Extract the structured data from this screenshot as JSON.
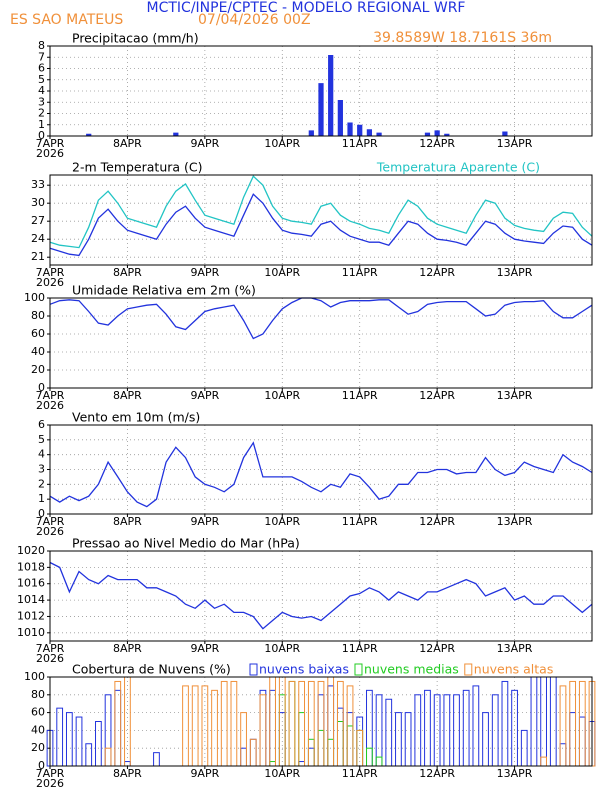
{
  "header": {
    "title": "MCTIC/INPE/CPTEC - MODELO REGIONAL WRF",
    "station": "ES SAO MATEUS",
    "date": "07/04/2026 00Z",
    "location": "39.8589W 18.7161S 36m"
  },
  "chart_data": [
    {
      "type": "bar",
      "title": "Precipitacao (mm/h)",
      "year_label": "2026",
      "grid": true,
      "x": [
        0,
        3,
        6,
        9,
        12,
        15,
        18,
        21,
        24,
        27,
        30,
        33,
        36,
        39,
        42,
        45,
        48,
        51,
        54,
        57,
        60,
        63,
        66,
        69,
        72,
        75,
        78,
        81,
        84,
        87,
        90,
        93,
        96,
        99,
        102,
        105,
        108,
        111,
        114,
        117,
        120,
        123,
        126,
        129,
        132,
        135,
        138,
        141,
        144,
        147,
        150,
        153,
        156,
        159,
        162,
        165,
        168
      ],
      "xlim": [
        0,
        168
      ],
      "xticks": [
        {
          "value": 0,
          "label": "7APR"
        },
        {
          "value": 24,
          "label": "8APR"
        },
        {
          "value": 48,
          "label": "9APR"
        },
        {
          "value": 72,
          "label": "10APR"
        },
        {
          "value": 96,
          "label": "11APR"
        },
        {
          "value": 120,
          "label": "12APR"
        },
        {
          "value": 144,
          "label": "13APR"
        }
      ],
      "ylim": [
        0,
        8
      ],
      "yticks": [
        0,
        1,
        2,
        3,
        4,
        5,
        6,
        7,
        8
      ],
      "series": [
        {
          "color": "#2233dd",
          "values": [
            0,
            0,
            0,
            0,
            0.2,
            0,
            0,
            0,
            0,
            0,
            0,
            0,
            0,
            0.3,
            0,
            0,
            0,
            0,
            0,
            0,
            0,
            0,
            0,
            0,
            0,
            0,
            0,
            0.5,
            4.7,
            7.2,
            3.2,
            1.2,
            1.0,
            0.6,
            0.3,
            0,
            0,
            0,
            0,
            0.3,
            0.5,
            0.2,
            0,
            0,
            0,
            0,
            0,
            0.4,
            0,
            0,
            0,
            0,
            0,
            0,
            0,
            0,
            0
          ]
        }
      ]
    },
    {
      "type": "line",
      "title": "2-m Temperatura (C)",
      "year_label": "2026",
      "grid": true,
      "x": [
        0,
        3,
        6,
        9,
        12,
        15,
        18,
        21,
        24,
        27,
        30,
        33,
        36,
        39,
        42,
        45,
        48,
        51,
        54,
        57,
        60,
        63,
        66,
        69,
        72,
        75,
        78,
        81,
        84,
        87,
        90,
        93,
        96,
        99,
        102,
        105,
        108,
        111,
        114,
        117,
        120,
        123,
        126,
        129,
        132,
        135,
        138,
        141,
        144,
        147,
        150,
        153,
        156,
        159,
        162,
        165,
        168
      ],
      "xlim": [
        0,
        168
      ],
      "xticks": [
        {
          "value": 0,
          "label": "7APR"
        },
        {
          "value": 24,
          "label": "8APR"
        },
        {
          "value": 48,
          "label": "9APR"
        },
        {
          "value": 72,
          "label": "10APR"
        },
        {
          "value": 96,
          "label": "11APR"
        },
        {
          "value": 120,
          "label": "12APR"
        },
        {
          "value": 144,
          "label": "13APR"
        }
      ],
      "ylim": [
        19.7,
        34.7
      ],
      "yticks": [
        21,
        24,
        27,
        30,
        33
      ],
      "series": [
        {
          "color": "#2233dd",
          "values": [
            22.5,
            22,
            21.5,
            21.3,
            24,
            27.5,
            29,
            27,
            25.5,
            25,
            24.5,
            24,
            26.5,
            28.5,
            29.5,
            27.5,
            26,
            25.5,
            25,
            24.5,
            28,
            31.5,
            30,
            27.5,
            25.5,
            25,
            24.8,
            24.5,
            26.5,
            27,
            25.5,
            24.5,
            24,
            23.5,
            23.5,
            23,
            25,
            27,
            26.5,
            25,
            24,
            23.8,
            23.5,
            23,
            25,
            27,
            26.5,
            25,
            24,
            23.7,
            23.5,
            23.3,
            25,
            26.2,
            26,
            24,
            23
          ]
        },
        {
          "name": "Temperatura Aparente (C)",
          "color": "#22c4c4",
          "values": [
            23.5,
            23,
            22.8,
            22.6,
            26,
            30.5,
            32,
            30,
            27.5,
            27,
            26.5,
            26,
            29.5,
            32,
            33.2,
            30.5,
            28,
            27.5,
            27,
            26.5,
            31,
            34.5,
            33,
            29.5,
            27.5,
            27,
            26.8,
            26.5,
            29.5,
            30,
            28,
            27,
            26.5,
            25.8,
            25.5,
            25,
            28,
            30.5,
            29.5,
            27.5,
            26.5,
            26,
            25.5,
            25,
            28,
            30.5,
            30,
            27.5,
            26.3,
            25.8,
            25.5,
            25.3,
            27.5,
            28.5,
            28.3,
            26,
            24.5
          ]
        }
      ]
    },
    {
      "type": "line",
      "title": "Umidade Relativa em 2m (%)",
      "year_label": "2026",
      "grid": true,
      "x": [
        0,
        3,
        6,
        9,
        12,
        15,
        18,
        21,
        24,
        27,
        30,
        33,
        36,
        39,
        42,
        45,
        48,
        51,
        54,
        57,
        60,
        63,
        66,
        69,
        72,
        75,
        78,
        81,
        84,
        87,
        90,
        93,
        96,
        99,
        102,
        105,
        108,
        111,
        114,
        117,
        120,
        123,
        126,
        129,
        132,
        135,
        138,
        141,
        144,
        147,
        150,
        153,
        156,
        159,
        162,
        165,
        168
      ],
      "xlim": [
        0,
        168
      ],
      "xticks": [
        {
          "value": 0,
          "label": "7APR"
        },
        {
          "value": 24,
          "label": "8APR"
        },
        {
          "value": 48,
          "label": "9APR"
        },
        {
          "value": 72,
          "label": "10APR"
        },
        {
          "value": 96,
          "label": "11APR"
        },
        {
          "value": 120,
          "label": "12APR"
        },
        {
          "value": 144,
          "label": "13APR"
        }
      ],
      "ylim": [
        0,
        100
      ],
      "yticks": [
        0,
        20,
        40,
        60,
        80,
        100
      ],
      "series": [
        {
          "color": "#2233dd",
          "values": [
            93,
            97,
            98,
            97,
            85,
            72,
            70,
            80,
            88,
            90,
            92,
            93,
            82,
            68,
            65,
            75,
            85,
            88,
            90,
            92,
            75,
            55,
            60,
            75,
            88,
            95,
            100,
            100,
            97,
            90,
            95,
            97,
            97,
            97,
            98,
            98,
            90,
            82,
            85,
            93,
            95,
            96,
            96,
            96,
            88,
            80,
            82,
            92,
            95,
            96,
            96,
            97,
            85,
            78,
            78,
            85,
            92
          ]
        }
      ]
    },
    {
      "type": "line",
      "title": "Vento em 10m (m/s)",
      "year_label": "2026",
      "grid": true,
      "x": [
        0,
        3,
        6,
        9,
        12,
        15,
        18,
        21,
        24,
        27,
        30,
        33,
        36,
        39,
        42,
        45,
        48,
        51,
        54,
        57,
        60,
        63,
        66,
        69,
        72,
        75,
        78,
        81,
        84,
        87,
        90,
        93,
        96,
        99,
        102,
        105,
        108,
        111,
        114,
        117,
        120,
        123,
        126,
        129,
        132,
        135,
        138,
        141,
        144,
        147,
        150,
        153,
        156,
        159,
        162,
        165,
        168
      ],
      "xlim": [
        0,
        168
      ],
      "xticks": [
        {
          "value": 0,
          "label": "7APR"
        },
        {
          "value": 24,
          "label": "8APR"
        },
        {
          "value": 48,
          "label": "9APR"
        },
        {
          "value": 72,
          "label": "10APR"
        },
        {
          "value": 96,
          "label": "11APR"
        },
        {
          "value": 120,
          "label": "12APR"
        },
        {
          "value": 144,
          "label": "13APR"
        }
      ],
      "ylim": [
        0,
        6
      ],
      "yticks": [
        0,
        1,
        2,
        3,
        4,
        5,
        6
      ],
      "series": [
        {
          "color": "#2233dd",
          "values": [
            1.2,
            0.8,
            1.2,
            0.9,
            1.2,
            2,
            3.5,
            2.5,
            1.5,
            0.8,
            0.5,
            1,
            3.5,
            4.5,
            3.8,
            2.5,
            2,
            1.8,
            1.5,
            2,
            3.8,
            4.8,
            2.5,
            2.5,
            2.5,
            2.5,
            2.2,
            1.8,
            1.5,
            2,
            1.8,
            2.7,
            2.5,
            1.8,
            1,
            1.2,
            2,
            2,
            2.8,
            2.8,
            3,
            3,
            2.7,
            2.8,
            2.8,
            3.8,
            3,
            2.6,
            2.8,
            3.5,
            3.2,
            3,
            2.8,
            4,
            3.5,
            3.2,
            2.8
          ]
        }
      ]
    },
    {
      "type": "line",
      "title": "Pressao ao Nivel Medio do Mar (hPa)",
      "year_label": "2026",
      "grid": true,
      "x": [
        0,
        3,
        6,
        9,
        12,
        15,
        18,
        21,
        24,
        27,
        30,
        33,
        36,
        39,
        42,
        45,
        48,
        51,
        54,
        57,
        60,
        63,
        66,
        69,
        72,
        75,
        78,
        81,
        84,
        87,
        90,
        93,
        96,
        99,
        102,
        105,
        108,
        111,
        114,
        117,
        120,
        123,
        126,
        129,
        132,
        135,
        138,
        141,
        144,
        147,
        150,
        153,
        156,
        159,
        162,
        165,
        168
      ],
      "xlim": [
        0,
        168
      ],
      "xticks": [
        {
          "value": 0,
          "label": "7APR"
        },
        {
          "value": 24,
          "label": "8APR"
        },
        {
          "value": 48,
          "label": "9APR"
        },
        {
          "value": 72,
          "label": "10APR"
        },
        {
          "value": 96,
          "label": "11APR"
        },
        {
          "value": 120,
          "label": "12APR"
        },
        {
          "value": 144,
          "label": "13APR"
        }
      ],
      "ylim": [
        1009,
        1020
      ],
      "yticks": [
        1010,
        1012,
        1014,
        1016,
        1018,
        1020
      ],
      "series": [
        {
          "color": "#2233dd",
          "values": [
            1018.6,
            1018,
            1015,
            1017.5,
            1016.5,
            1016,
            1017,
            1016.5,
            1016.5,
            1016.5,
            1015.5,
            1015.5,
            1015,
            1014.5,
            1013.5,
            1013,
            1014,
            1013,
            1013.5,
            1012.5,
            1012.5,
            1012,
            1010.5,
            1011.5,
            1012.5,
            1012,
            1011.8,
            1012,
            1011.5,
            1012.5,
            1013.5,
            1014.5,
            1014.8,
            1015.5,
            1015,
            1014,
            1015,
            1014.5,
            1014,
            1015,
            1015,
            1015.5,
            1016,
            1016.5,
            1016,
            1014.5,
            1015,
            1015.5,
            1014,
            1014.5,
            1013.5,
            1013.5,
            1014.5,
            1014.5,
            1013.5,
            1012.5,
            1013.5
          ]
        }
      ]
    },
    {
      "type": "hollow-bar",
      "title": "Cobertura de Nuvens (%)",
      "year_label": "2026",
      "grid": true,
      "x": [
        0,
        3,
        6,
        9,
        12,
        15,
        18,
        21,
        24,
        27,
        30,
        33,
        36,
        39,
        42,
        45,
        48,
        51,
        54,
        57,
        60,
        63,
        66,
        69,
        72,
        75,
        78,
        81,
        84,
        87,
        90,
        93,
        96,
        99,
        102,
        105,
        108,
        111,
        114,
        117,
        120,
        123,
        126,
        129,
        132,
        135,
        138,
        141,
        144,
        147,
        150,
        153,
        156,
        159,
        162,
        165,
        168
      ],
      "xlim": [
        0,
        168
      ],
      "xticks": [
        {
          "value": 0,
          "label": "7APR"
        },
        {
          "value": 24,
          "label": "8APR"
        },
        {
          "value": 48,
          "label": "9APR"
        },
        {
          "value": 72,
          "label": "10APR"
        },
        {
          "value": 96,
          "label": "11APR"
        },
        {
          "value": 120,
          "label": "12APR"
        },
        {
          "value": 144,
          "label": "13APR"
        }
      ],
      "ylim": [
        0,
        100
      ],
      "yticks": [
        0,
        20,
        40,
        60,
        80,
        100
      ],
      "series": [
        {
          "name": "nuvens baixas",
          "color": "#2233dd",
          "values": [
            40,
            65,
            60,
            55,
            25,
            50,
            80,
            85,
            5,
            0,
            0,
            15,
            0,
            0,
            0,
            0,
            0,
            0,
            0,
            0,
            20,
            30,
            85,
            85,
            60,
            0,
            5,
            20,
            80,
            90,
            65,
            60,
            55,
            85,
            80,
            75,
            60,
            60,
            80,
            85,
            80,
            80,
            80,
            85,
            90,
            60,
            80,
            95,
            85,
            40,
            100,
            100,
            100,
            25,
            60,
            55,
            50
          ]
        },
        {
          "name": "nuvens medias",
          "color": "#22cc22",
          "values": [
            0,
            0,
            0,
            0,
            0,
            0,
            0,
            0,
            0,
            0,
            0,
            0,
            0,
            0,
            0,
            0,
            0,
            0,
            0,
            0,
            0,
            0,
            0,
            5,
            80,
            95,
            60,
            30,
            40,
            30,
            50,
            45,
            40,
            20,
            10,
            0,
            0,
            0,
            0,
            0,
            0,
            0,
            0,
            0,
            0,
            0,
            0,
            0,
            0,
            0,
            0,
            0,
            0,
            0,
            0,
            0,
            0
          ]
        },
        {
          "name": "nuvens altas",
          "color": "#f0903a",
          "values": [
            0,
            0,
            0,
            0,
            0,
            0,
            20,
            95,
            100,
            0,
            0,
            0,
            0,
            0,
            90,
            90,
            90,
            85,
            95,
            95,
            60,
            30,
            80,
            100,
            100,
            95,
            95,
            95,
            95,
            100,
            95,
            90,
            40,
            0,
            0,
            0,
            0,
            0,
            0,
            0,
            0,
            0,
            0,
            0,
            0,
            0,
            0,
            0,
            0,
            0,
            0,
            10,
            0,
            90,
            95,
            95,
            95
          ]
        }
      ]
    }
  ]
}
